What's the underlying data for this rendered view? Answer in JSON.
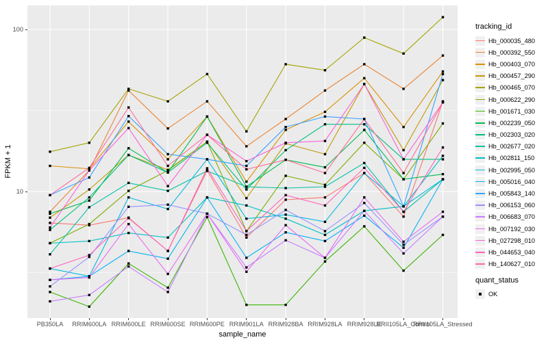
{
  "figure": {
    "y_axis_title": "FPKM + 1",
    "x_axis_title": "sample_name",
    "y_tick_labels": [
      "100",
      "10"
    ],
    "colors": {
      "panel_bg": "#EBEBEB",
      "grid": "#FFFFFF",
      "tick_text": "#4D4D4D",
      "legend_key_bg": "#F0F0F0",
      "point": "#000000"
    }
  },
  "legend": {
    "tracking_title": "tracking_id",
    "quant_title": "quant_status",
    "quant_items": [
      {
        "label": "OK",
        "marker": "black-square"
      }
    ]
  },
  "chart_data": {
    "type": "line",
    "title": "",
    "xlabel": "sample_name",
    "ylabel": "FPKM + 1",
    "y_scale": "log10",
    "ylim": [
      1.66,
      140
    ],
    "y_major_breaks": [
      10,
      100
    ],
    "y_minor_breaks": [
      3.162,
      31.623
    ],
    "grid": true,
    "legend_position": "right",
    "marker": "square",
    "categories": [
      "PB350LA",
      "RRIM600LA",
      "RRIM600LE",
      "RRIM600SE",
      "RRIM600PE",
      "RRIM901LA",
      "RRIM928BA",
      "RRIM928LA",
      "RRIM928LE",
      "RRII105LA_Control",
      "RRII105LA_Stressed"
    ],
    "series": [
      {
        "name": "Hb_000035_480",
        "color": "#F8766D",
        "values": [
          6.4,
          6.2,
          6.9,
          4.3,
          13.5,
          5.2,
          8.9,
          9.2,
          13.0,
          7.0,
          36.0
        ]
      },
      {
        "name": "Hb_000392_550",
        "color": "#EA8331",
        "values": [
          7.5,
          13.5,
          42.0,
          24.5,
          36.0,
          19.0,
          28.0,
          42.0,
          61.0,
          43.0,
          69.0
        ]
      },
      {
        "name": "Hb_000403_070",
        "color": "#D89000",
        "values": [
          14.4,
          13.8,
          27.0,
          15.8,
          29.0,
          11.5,
          24.0,
          31.0,
          50.0,
          25.0,
          55.0
        ]
      },
      {
        "name": "Hb_000457_290",
        "color": "#C09B00",
        "values": [
          6.9,
          10.3,
          16.8,
          13.6,
          20.3,
          9.1,
          19.8,
          17.0,
          46.0,
          18.0,
          48.7
        ]
      },
      {
        "name": "Hb_000465_070",
        "color": "#A3A500",
        "values": [
          17.6,
          20.0,
          43.0,
          36.0,
          53.0,
          23.5,
          61.0,
          56.0,
          89.0,
          71.0,
          119.0
        ]
      },
      {
        "name": "Hb_000622_290",
        "color": "#7CAE00",
        "values": [
          4.8,
          6.3,
          10.1,
          13.5,
          20.3,
          5.7,
          12.5,
          11.0,
          20.0,
          11.9,
          26.3
        ]
      },
      {
        "name": "Hb_001671_030",
        "color": "#39B600",
        "values": [
          2.4,
          1.95,
          3.6,
          2.55,
          6.95,
          2.0,
          2.0,
          3.7,
          6.1,
          3.25,
          5.4
        ]
      },
      {
        "name": "Hb_002239_050",
        "color": "#00BB4E",
        "values": [
          7.3,
          8.8,
          18.5,
          13.1,
          29.0,
          10.7,
          15.7,
          14.1,
          24.0,
          11.9,
          12.8
        ]
      },
      {
        "name": "Hb_002303_020",
        "color": "#00BF7D",
        "values": [
          5.8,
          9.2,
          16.8,
          13.1,
          20.0,
          10.3,
          18.0,
          26.0,
          26.0,
          15.8,
          15.8
        ]
      },
      {
        "name": "Hb_002677_020",
        "color": "#00C1A3",
        "values": [
          4.1,
          8.0,
          11.3,
          10.1,
          13.4,
          10.7,
          10.5,
          10.7,
          15.0,
          7.5,
          11.9
        ]
      },
      {
        "name": "Hb_002811_150",
        "color": "#00BFC4",
        "values": [
          4.8,
          4.95,
          5.55,
          5.2,
          9.2,
          8.2,
          6.8,
          5.4,
          7.6,
          8.1,
          16.6
        ]
      },
      {
        "name": "Hb_002995_050",
        "color": "#00BAE0",
        "values": [
          3.35,
          3.0,
          9.2,
          7.8,
          15.8,
          6.8,
          7.2,
          6.5,
          13.0,
          8.1,
          11.9
        ]
      },
      {
        "name": "Hb_005016_040",
        "color": "#00B0F6",
        "values": [
          2.85,
          3.0,
          4.3,
          3.85,
          9.2,
          3.9,
          5.6,
          4.95,
          7.1,
          4.5,
          11.9
        ]
      },
      {
        "name": "Hb_005843_140",
        "color": "#35A2FF",
        "values": [
          9.5,
          12.2,
          29.2,
          17.0,
          15.8,
          14.4,
          25.0,
          29.0,
          28.0,
          8.1,
          53.0
        ]
      },
      {
        "name": "Hb_006153_060",
        "color": "#9590FF",
        "values": [
          2.6,
          3.95,
          8.05,
          8.3,
          7.3,
          5.4,
          7.7,
          5.7,
          8.5,
          4.7,
          7.0
        ]
      },
      {
        "name": "Hb_006683_070",
        "color": "#C77CFF",
        "values": [
          2.1,
          2.3,
          3.45,
          2.4,
          7.3,
          3.4,
          5.0,
          3.9,
          7.6,
          4.15,
          7.0
        ]
      },
      {
        "name": "Hb_007192_030",
        "color": "#E76BF3",
        "values": [
          2.85,
          2.95,
          6.3,
          3.1,
          7.3,
          3.2,
          6.2,
          3.9,
          9.2,
          4.9,
          7.5
        ]
      },
      {
        "name": "Hb_027298_010",
        "color": "#FA62DB",
        "values": [
          6.0,
          13.5,
          24.6,
          10.8,
          22.4,
          15.4,
          20.0,
          20.5,
          46.0,
          15.8,
          35.5
        ]
      },
      {
        "name": "Hb_044653_040",
        "color": "#FF62BC",
        "values": [
          3.35,
          4.05,
          6.85,
          4.3,
          13.9,
          5.7,
          9.5,
          8.2,
          14.0,
          7.5,
          18.7
        ]
      },
      {
        "name": "Hb_140627_010",
        "color": "#FF6A98",
        "values": [
          9.5,
          14.0,
          33.0,
          14.4,
          22.4,
          13.7,
          15.7,
          13.0,
          28.0,
          13.0,
          35.5
        ]
      }
    ]
  }
}
